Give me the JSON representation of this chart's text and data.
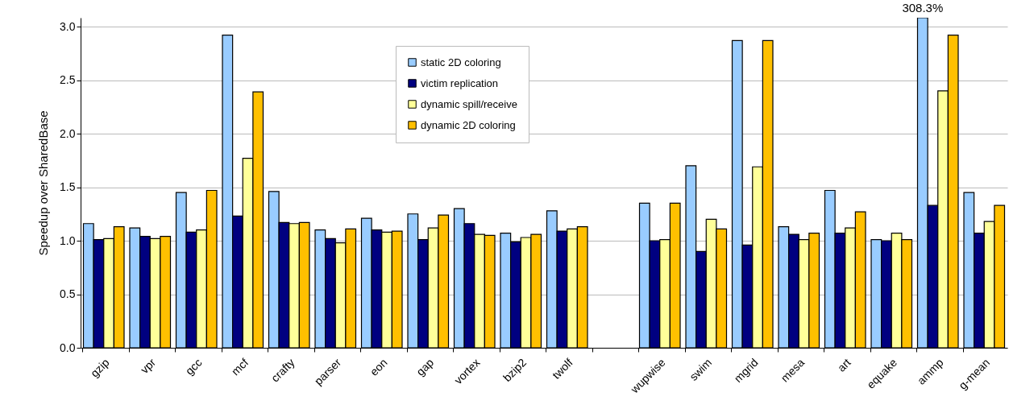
{
  "chart_data": {
    "type": "bar",
    "ylabel": "Speedup over SharedBase",
    "categories": [
      "gzip",
      "vpr",
      "gcc",
      "mcf",
      "crafty",
      "parser",
      "eon",
      "gap",
      "vortex",
      "bzip2",
      "twolf",
      null,
      "wupwise",
      "swim",
      "mgrid",
      "mesa",
      "art",
      "equake",
      "ammp",
      "g-mean"
    ],
    "series": [
      {
        "name": "static 2D coloring",
        "color": "#99ccff",
        "values": [
          1.16,
          1.12,
          1.45,
          2.92,
          1.46,
          1.1,
          1.21,
          1.25,
          1.3,
          1.07,
          1.28,
          null,
          1.35,
          1.7,
          2.87,
          1.13,
          1.47,
          1.01,
          3.083,
          1.45
        ],
        "value_labels": [
          null,
          null,
          null,
          null,
          null,
          null,
          null,
          null,
          null,
          null,
          null,
          null,
          null,
          null,
          null,
          null,
          null,
          null,
          "308.3%",
          null
        ]
      },
      {
        "name": "victim replication",
        "color": "#000080",
        "values": [
          1.01,
          1.04,
          1.08,
          1.23,
          1.17,
          1.02,
          1.1,
          1.01,
          1.16,
          0.99,
          1.09,
          null,
          1.0,
          0.9,
          0.96,
          1.06,
          1.07,
          1.0,
          1.33,
          1.07
        ]
      },
      {
        "name": "dynamic spill/receive",
        "color": "#ffff99",
        "values": [
          1.02,
          1.02,
          1.1,
          1.77,
          1.16,
          0.98,
          1.08,
          1.12,
          1.06,
          1.03,
          1.11,
          null,
          1.01,
          1.2,
          1.69,
          1.01,
          1.12,
          1.07,
          2.4,
          1.18
        ]
      },
      {
        "name": "dynamic 2D coloring",
        "color": "#ffc000",
        "values": [
          1.13,
          1.04,
          1.47,
          2.39,
          1.17,
          1.11,
          1.09,
          1.24,
          1.05,
          1.06,
          1.13,
          null,
          1.35,
          1.11,
          2.87,
          1.07,
          1.27,
          1.01,
          2.92,
          1.33
        ]
      }
    ],
    "ylim": [
      0,
      3.083
    ],
    "yticks": [
      {
        "value": 0,
        "label": "0.0"
      },
      {
        "value": 0.5,
        "label": "0.5"
      },
      {
        "value": 1,
        "label": "1.0"
      },
      {
        "value": 1.5,
        "label": "1.5"
      },
      {
        "value": 2,
        "label": "2.0"
      },
      {
        "value": 2.5,
        "label": "2.5"
      },
      {
        "value": 3,
        "label": "3.0"
      }
    ],
    "grid": "y",
    "legend": "top"
  }
}
